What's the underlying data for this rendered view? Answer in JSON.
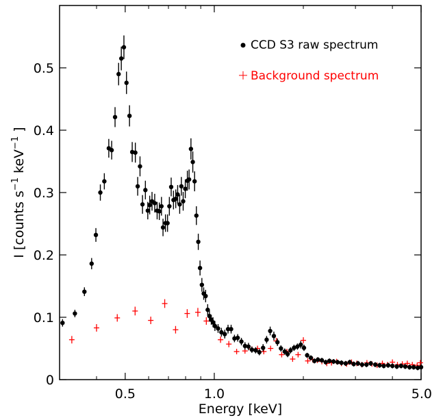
{
  "chart_data": {
    "type": "scatter",
    "title": "",
    "xlabel": "Energy [keV]",
    "ylabel": "I [counts s^-1 keV^-1 ]",
    "xscale": "log",
    "xlim": [
      0.3,
      5.0
    ],
    "ylim": [
      0,
      0.6
    ],
    "x_tick_labels": [
      {
        "value": 0.5,
        "label": "0.5"
      },
      {
        "value": 1.0,
        "label": "1.0"
      },
      {
        "value": 5.0,
        "label": "5.0"
      }
    ],
    "y_tick_labels": [
      {
        "value": 0,
        "label": "0"
      },
      {
        "value": 0.1,
        "label": "0.1"
      },
      {
        "value": 0.2,
        "label": "0.2"
      },
      {
        "value": 0.3,
        "label": "0.3"
      },
      {
        "value": 0.4,
        "label": "0.4"
      },
      {
        "value": 0.5,
        "label": "0.5"
      }
    ],
    "grid": false,
    "legend_position": "top-right",
    "series": [
      {
        "name": "CCD S3 raw spectrum",
        "marker": "dot",
        "color": "#000000",
        "x": [
          0.307,
          0.338,
          0.364,
          0.385,
          0.398,
          0.412,
          0.425,
          0.44,
          0.45,
          0.462,
          0.475,
          0.485,
          0.495,
          0.505,
          0.517,
          0.528,
          0.541,
          0.551,
          0.561,
          0.572,
          0.585,
          0.596,
          0.605,
          0.616,
          0.629,
          0.641,
          0.652,
          0.663,
          0.671,
          0.684,
          0.695,
          0.705,
          0.715,
          0.728,
          0.741,
          0.752,
          0.764,
          0.774,
          0.785,
          0.798,
          0.811,
          0.822,
          0.834,
          0.846,
          0.858,
          0.87,
          0.883,
          0.895,
          0.908,
          0.921,
          0.935,
          0.95,
          0.963,
          0.977,
          0.99,
          1.005,
          1.03,
          1.057,
          1.085,
          1.113,
          1.14,
          1.17,
          1.2,
          1.235,
          1.27,
          1.305,
          1.34,
          1.38,
          1.42,
          1.462,
          1.503,
          1.545,
          1.59,
          1.635,
          1.68,
          1.73,
          1.77,
          1.81,
          1.86,
          1.91,
          1.96,
          2.01,
          2.06,
          2.12,
          2.18,
          2.24,
          2.31,
          2.38,
          2.45,
          2.53,
          2.61,
          2.69,
          2.78,
          2.87,
          2.96,
          3.06,
          3.16,
          3.27,
          3.38,
          3.5,
          3.62,
          3.74,
          3.87,
          4.0,
          4.14,
          4.28,
          4.42,
          4.57,
          4.72,
          4.87,
          5.0
        ],
        "y": [
          0.091,
          0.106,
          0.141,
          0.186,
          0.232,
          0.3,
          0.318,
          0.371,
          0.368,
          0.421,
          0.49,
          0.515,
          0.533,
          0.476,
          0.423,
          0.365,
          0.364,
          0.31,
          0.342,
          0.281,
          0.304,
          0.271,
          0.28,
          0.286,
          0.283,
          0.271,
          0.27,
          0.278,
          0.244,
          0.251,
          0.251,
          0.278,
          0.309,
          0.288,
          0.29,
          0.297,
          0.281,
          0.31,
          0.286,
          0.306,
          0.319,
          0.321,
          0.37,
          0.349,
          0.318,
          0.263,
          0.221,
          0.179,
          0.152,
          0.138,
          0.134,
          0.112,
          0.102,
          0.096,
          0.092,
          0.086,
          0.082,
          0.076,
          0.073,
          0.081,
          0.081,
          0.066,
          0.067,
          0.061,
          0.054,
          0.053,
          0.048,
          0.047,
          0.044,
          0.051,
          0.064,
          0.078,
          0.07,
          0.06,
          0.05,
          0.045,
          0.041,
          0.047,
          0.051,
          0.053,
          0.056,
          0.051,
          0.039,
          0.035,
          0.03,
          0.032,
          0.031,
          0.028,
          0.03,
          0.029,
          0.028,
          0.027,
          0.026,
          0.028,
          0.025,
          0.026,
          0.024,
          0.024,
          0.026,
          0.024,
          0.023,
          0.022,
          0.023,
          0.022,
          0.021,
          0.022,
          0.021,
          0.02,
          0.02,
          0.019,
          0.02
        ],
        "yerr": [
          0.006,
          0.006,
          0.007,
          0.009,
          0.011,
          0.013,
          0.013,
          0.015,
          0.015,
          0.016,
          0.018,
          0.019,
          0.019,
          0.018,
          0.017,
          0.016,
          0.016,
          0.015,
          0.016,
          0.015,
          0.015,
          0.014,
          0.015,
          0.015,
          0.015,
          0.014,
          0.014,
          0.015,
          0.014,
          0.014,
          0.014,
          0.015,
          0.015,
          0.015,
          0.015,
          0.015,
          0.015,
          0.015,
          0.015,
          0.015,
          0.016,
          0.016,
          0.017,
          0.017,
          0.016,
          0.015,
          0.013,
          0.012,
          0.011,
          0.01,
          0.01,
          0.009,
          0.009,
          0.008,
          0.008,
          0.008,
          0.007,
          0.007,
          0.007,
          0.007,
          0.007,
          0.006,
          0.006,
          0.006,
          0.006,
          0.006,
          0.005,
          0.005,
          0.005,
          0.006,
          0.006,
          0.007,
          0.007,
          0.006,
          0.005,
          0.005,
          0.005,
          0.005,
          0.005,
          0.005,
          0.006,
          0.005,
          0.004,
          0.004,
          0.004,
          0.004,
          0.004,
          0.004,
          0.004,
          0.004,
          0.004,
          0.004,
          0.004,
          0.004,
          0.004,
          0.004,
          0.004,
          0.004,
          0.004,
          0.004,
          0.004,
          0.004,
          0.004,
          0.004,
          0.004,
          0.004,
          0.004,
          0.004,
          0.004,
          0.004,
          0.004
        ]
      },
      {
        "name": "Background spectrum",
        "marker": "plus",
        "color": "#ff0000",
        "x": [
          0.33,
          0.4,
          0.47,
          0.54,
          0.61,
          0.68,
          0.74,
          0.81,
          0.88,
          0.94,
          1.05,
          1.12,
          1.19,
          1.27,
          1.34,
          1.4,
          1.47,
          1.55,
          1.62,
          1.69,
          1.76,
          1.84,
          1.92,
          2.0,
          2.07,
          2.15,
          2.23,
          2.31,
          2.4,
          2.49,
          2.59,
          2.69,
          2.8,
          2.91,
          3.03,
          3.15,
          3.28,
          3.41,
          3.55,
          3.7,
          3.85,
          4.0,
          4.16,
          4.32,
          4.49,
          4.67,
          4.85,
          4.97
        ],
        "y": [
          0.064,
          0.083,
          0.099,
          0.11,
          0.095,
          0.122,
          0.08,
          0.106,
          0.108,
          0.094,
          0.064,
          0.057,
          0.045,
          0.046,
          0.049,
          0.05,
          0.045,
          0.05,
          0.062,
          0.04,
          0.045,
          0.033,
          0.04,
          0.063,
          0.03,
          0.032,
          0.031,
          0.029,
          0.026,
          0.027,
          0.029,
          0.026,
          0.025,
          0.028,
          0.026,
          0.024,
          0.027,
          0.025,
          0.023,
          0.026,
          0.024,
          0.028,
          0.024,
          0.025,
          0.026,
          0.024,
          0.023,
          0.027
        ],
        "yerr": [
          0.006,
          0.006,
          0.006,
          0.007,
          0.006,
          0.007,
          0.006,
          0.007,
          0.007,
          0.006,
          0.005,
          0.005,
          0.004,
          0.004,
          0.004,
          0.004,
          0.004,
          0.004,
          0.005,
          0.004,
          0.004,
          0.004,
          0.004,
          0.005,
          0.003,
          0.003,
          0.003,
          0.003,
          0.003,
          0.003,
          0.003,
          0.003,
          0.003,
          0.003,
          0.003,
          0.003,
          0.003,
          0.003,
          0.003,
          0.003,
          0.003,
          0.003,
          0.003,
          0.003,
          0.003,
          0.003,
          0.003,
          0.003
        ]
      }
    ]
  }
}
